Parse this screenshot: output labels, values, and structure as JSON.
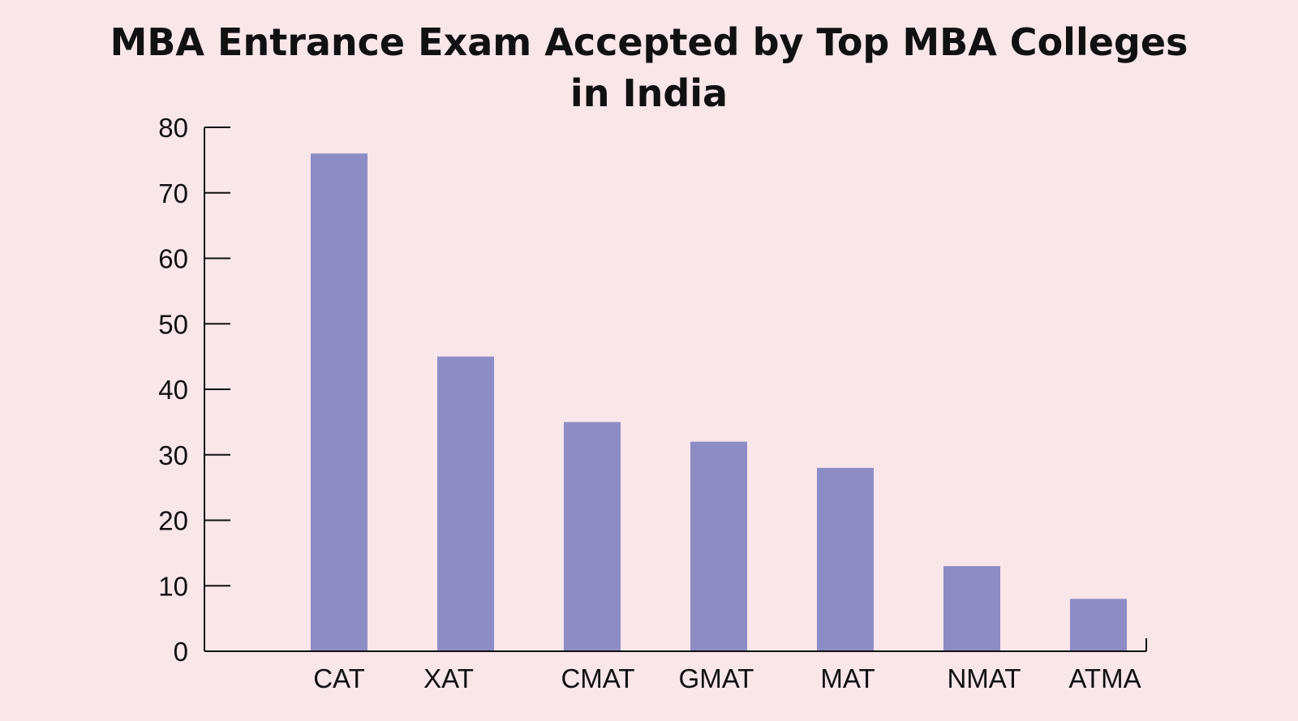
{
  "chart_data": {
    "type": "bar",
    "title_lines": [
      "MBA Entrance Exam Accepted by Top MBA Colleges",
      "in India"
    ],
    "categories": [
      "CAT",
      "XAT",
      "CMAT",
      "GMAT",
      "MAT",
      "NMAT",
      "ATMA"
    ],
    "values": [
      76,
      45,
      35,
      32,
      28,
      13,
      8
    ],
    "xlabel": "",
    "ylabel": "",
    "ylim": [
      0,
      80
    ],
    "yticks": [
      0,
      10,
      20,
      30,
      40,
      50,
      60,
      70,
      80
    ],
    "grid": false,
    "legend": "none",
    "bar_color": "#8e8cc5"
  }
}
